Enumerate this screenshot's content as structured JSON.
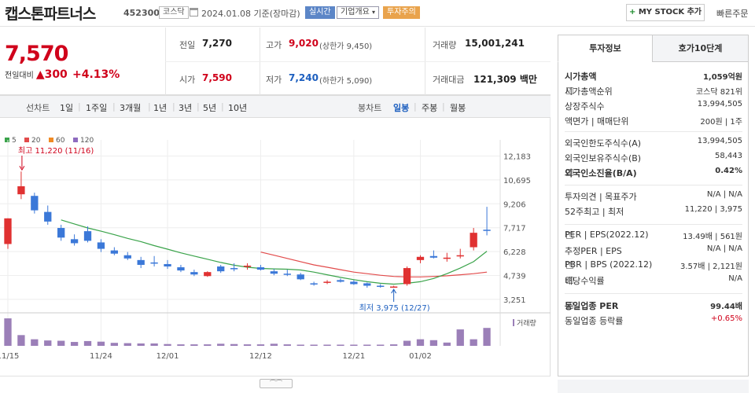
{
  "header": {
    "name": "캡스톤파트너스",
    "code": "452300",
    "market": "코스닥",
    "date": "2024.01.08 기준(장마감)",
    "realtime": "실시간",
    "overview": "기업개요",
    "warning": "투자주의",
    "mystock": "MY STOCK 추가",
    "mystock_plus": "+",
    "quick_order": "빠른주문"
  },
  "price": {
    "current": "7,570",
    "change_label": "전일대비",
    "change_amount": "▲300",
    "change_pct": "+4.13%",
    "prev_close_label": "전일",
    "prev_close": "7,270",
    "open_label": "시가",
    "open": "7,590",
    "high_label": "고가",
    "high": "9,020",
    "upper_limit": "(상한가 9,450)",
    "low_label": "저가",
    "low": "7,240",
    "lower_limit": "(하한가 5,090)",
    "volume_label": "거래량",
    "volume": "15,001,241",
    "amount_label": "거래대금",
    "amount": "121,309 백만"
  },
  "toolbar": {
    "line_chart": "선차트",
    "periods": [
      "1일",
      "1주일",
      "3개월",
      "1년",
      "3년",
      "5년",
      "10년"
    ],
    "candle_chart": "봉차트",
    "candles": [
      "일봉",
      "주봉",
      "월봉"
    ]
  },
  "chart_data": {
    "type": "candlestick",
    "legend": [
      {
        "name": "5",
        "color": "#3aa34a"
      },
      {
        "name": "20",
        "color": "#e24b4b"
      },
      {
        "name": "60",
        "color": "#f08a24"
      },
      {
        "name": "120",
        "color": "#8e6bbf"
      }
    ],
    "y_ticks": [
      12183,
      10695,
      9206,
      7717,
      6228,
      4739,
      3251
    ],
    "ylim": [
      2900,
      12700
    ],
    "x_labels": [
      {
        "label": "11/15",
        "index": 0
      },
      {
        "label": "11/24",
        "index": 7
      },
      {
        "label": "12/01",
        "index": 12
      },
      {
        "label": "12/12",
        "index": 19
      },
      {
        "label": "12/21",
        "index": 26
      },
      {
        "label": "01/02",
        "index": 31
      }
    ],
    "annotations": {
      "max": "최고 11,220 (11/16)",
      "min": "최저 3,975 (12/27)"
    },
    "volume_label": "거래량",
    "candles": [
      {
        "o": 6700,
        "h": 8300,
        "l": 6400,
        "c": 8300,
        "v": 0.92
      },
      {
        "o": 9800,
        "h": 11220,
        "l": 9500,
        "c": 10300,
        "v": 0.36
      },
      {
        "o": 9700,
        "h": 9900,
        "l": 8600,
        "c": 8800,
        "v": 0.22
      },
      {
        "o": 8700,
        "h": 9100,
        "l": 7900,
        "c": 8100,
        "v": 0.18
      },
      {
        "o": 7700,
        "h": 7900,
        "l": 6900,
        "c": 7100,
        "v": 0.17
      },
      {
        "o": 7000,
        "h": 7300,
        "l": 6600,
        "c": 6750,
        "v": 0.13
      },
      {
        "o": 7500,
        "h": 7800,
        "l": 6800,
        "c": 6900,
        "v": 0.16
      },
      {
        "o": 6800,
        "h": 7000,
        "l": 6200,
        "c": 6400,
        "v": 0.14
      },
      {
        "o": 6300,
        "h": 6500,
        "l": 6000,
        "c": 6100,
        "v": 0.1
      },
      {
        "o": 6000,
        "h": 6200,
        "l": 5700,
        "c": 5800,
        "v": 0.09
      },
      {
        "o": 5700,
        "h": 5900,
        "l": 5200,
        "c": 5400,
        "v": 0.08
      },
      {
        "o": 5550,
        "h": 5950,
        "l": 5300,
        "c": 5500,
        "v": 0.08
      },
      {
        "o": 5450,
        "h": 5700,
        "l": 5150,
        "c": 5300,
        "v": 0.06
      },
      {
        "o": 5250,
        "h": 5400,
        "l": 4950,
        "c": 5050,
        "v": 0.05
      },
      {
        "o": 4950,
        "h": 5100,
        "l": 4700,
        "c": 4800,
        "v": 0.05
      },
      {
        "o": 4700,
        "h": 5000,
        "l": 4650,
        "c": 4950,
        "v": 0.05
      },
      {
        "o": 5300,
        "h": 5400,
        "l": 4900,
        "c": 5000,
        "v": 0.07
      },
      {
        "o": 5200,
        "h": 5500,
        "l": 5000,
        "c": 5150,
        "v": 0.06
      },
      {
        "o": 5300,
        "h": 5500,
        "l": 5100,
        "c": 5350,
        "v": 0.05
      },
      {
        "o": 5250,
        "h": 5400,
        "l": 5050,
        "c": 5100,
        "v": 0.05
      },
      {
        "o": 5000,
        "h": 5150,
        "l": 4750,
        "c": 4850,
        "v": 0.07
      },
      {
        "o": 4850,
        "h": 5100,
        "l": 4700,
        "c": 4800,
        "v": 0.05
      },
      {
        "o": 4800,
        "h": 4900,
        "l": 4450,
        "c": 4500,
        "v": 0.04
      },
      {
        "o": 4250,
        "h": 4350,
        "l": 4100,
        "c": 4200,
        "v": 0.04
      },
      {
        "o": 4350,
        "h": 4450,
        "l": 4200,
        "c": 4350,
        "v": 0.04
      },
      {
        "o": 4450,
        "h": 4550,
        "l": 4300,
        "c": 4350,
        "v": 0.04
      },
      {
        "o": 4350,
        "h": 4450,
        "l": 4150,
        "c": 4200,
        "v": 0.04
      },
      {
        "o": 4250,
        "h": 4300,
        "l": 3975,
        "c": 4100,
        "v": 0.04
      },
      {
        "o": 4100,
        "h": 4200,
        "l": 3975,
        "c": 4050,
        "v": 0.04
      },
      {
        "o": 4000,
        "h": 4100,
        "l": 3975,
        "c": 4050,
        "v": 0.05
      },
      {
        "o": 4200,
        "h": 5300,
        "l": 4100,
        "c": 5200,
        "v": 0.17
      },
      {
        "o": 5700,
        "h": 6000,
        "l": 5500,
        "c": 5900,
        "v": 0.22
      },
      {
        "o": 5950,
        "h": 6300,
        "l": 5800,
        "c": 5850,
        "v": 0.19
      },
      {
        "o": 5800,
        "h": 6150,
        "l": 5600,
        "c": 5850,
        "v": 0.11
      },
      {
        "o": 6000,
        "h": 6400,
        "l": 5800,
        "c": 6000,
        "v": 0.55
      },
      {
        "o": 6500,
        "h": 7700,
        "l": 6300,
        "c": 7400,
        "v": 0.22
      },
      {
        "o": 7590,
        "h": 9020,
        "l": 7240,
        "c": 7570,
        "v": 0.6
      }
    ],
    "ma5": [
      null,
      null,
      null,
      null,
      8200,
      7950,
      7700,
      7500,
      7280,
      7050,
      6850,
      6600,
      6380,
      6150,
      5950,
      5750,
      5550,
      5380,
      5250,
      5180,
      5150,
      5130,
      5080,
      4950,
      4780,
      4620,
      4480,
      4350,
      4250,
      4200,
      4250,
      4350,
      4550,
      4850,
      5200,
      5600,
      6250
    ],
    "ma20": [
      null,
      null,
      null,
      null,
      null,
      null,
      null,
      null,
      null,
      null,
      null,
      null,
      null,
      null,
      null,
      null,
      null,
      null,
      null,
      6200,
      6000,
      5800,
      5600,
      5400,
      5250,
      5100,
      4950,
      4850,
      4750,
      4680,
      4650,
      4650,
      4680,
      4720,
      4780,
      4850,
      4950
    ]
  },
  "right_panel": {
    "tabs": [
      "투자정보",
      "호가10단계"
    ],
    "rows": [
      {
        "l": "시가총액",
        "r": "1,059억원",
        "bold": true
      },
      {
        "l": "시가총액순위",
        "r": "코스닥 821위"
      },
      {
        "l": "상장주식수",
        "r": "13,994,505"
      },
      {
        "l": "액면가 | 매매단위",
        "r": "200원 | 1주"
      },
      {
        "l": "외국인한도주식수(A)",
        "r": "13,994,505"
      },
      {
        "l": "외국인보유주식수(B)",
        "r": "58,443"
      },
      {
        "l": "외국인소진율(B/A)",
        "r": "0.42%",
        "bold": true
      },
      {
        "l": "투자의견 | 목표주가",
        "r": "N/A | N/A"
      },
      {
        "l": "52주최고 | 최저",
        "r": "11,220 | 3,975"
      },
      {
        "l": "PER | EPS(2022.12)",
        "r": "13.49배 | 561원"
      },
      {
        "l": "추정PER | EPS",
        "r": "N/A | N/A"
      },
      {
        "l": "PBR | BPS (2022.12)",
        "r": "3.57배 | 2,121원"
      },
      {
        "l": "배당수익률",
        "r": "N/A"
      },
      {
        "l": "동일업종 PER",
        "r": "99.44배",
        "bold": true
      },
      {
        "l": "동일업종 등락률",
        "r": "+0.65%",
        "red": true
      }
    ]
  },
  "colors": {
    "up": "#d0021b",
    "down": "#1d5fbf",
    "candle_up": "#e03131",
    "candle_down": "#3b78d8",
    "volume": "#9b7fb8"
  }
}
